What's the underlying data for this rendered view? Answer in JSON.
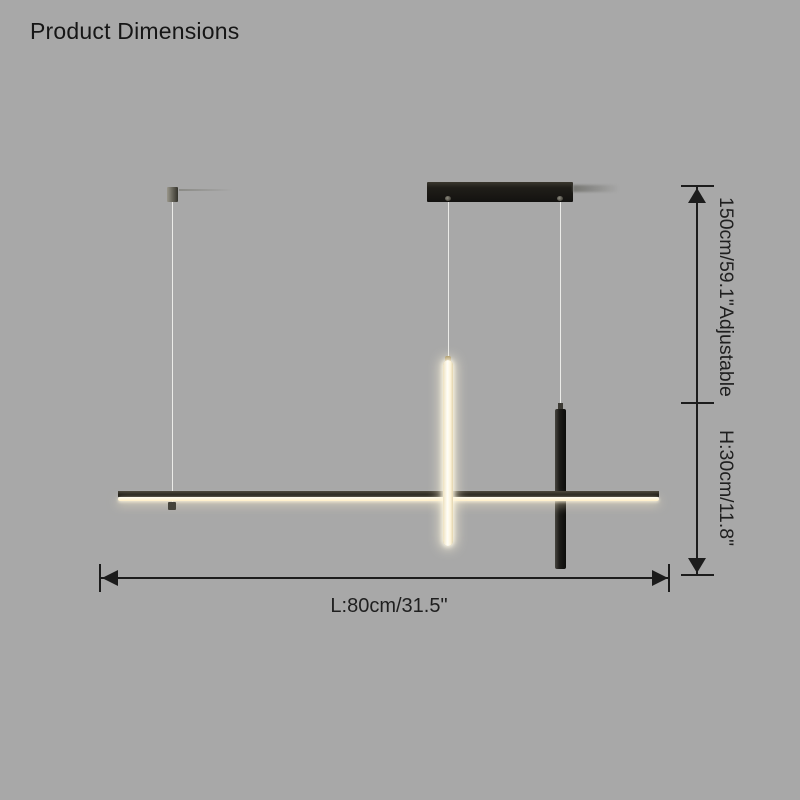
{
  "page": {
    "title": "Product Dimensions"
  },
  "annotations": {
    "suspension_height": "150cm/59.1\"Adjustable",
    "fixture_height": "H:30cm/11.8\"",
    "fixture_length": "L:80cm/31.5\""
  },
  "colors": {
    "background": "#a8a8a8",
    "dimension_line": "#1c1c1c",
    "fixture_black": "#151412",
    "led_warm_white": "#fff6dc"
  }
}
